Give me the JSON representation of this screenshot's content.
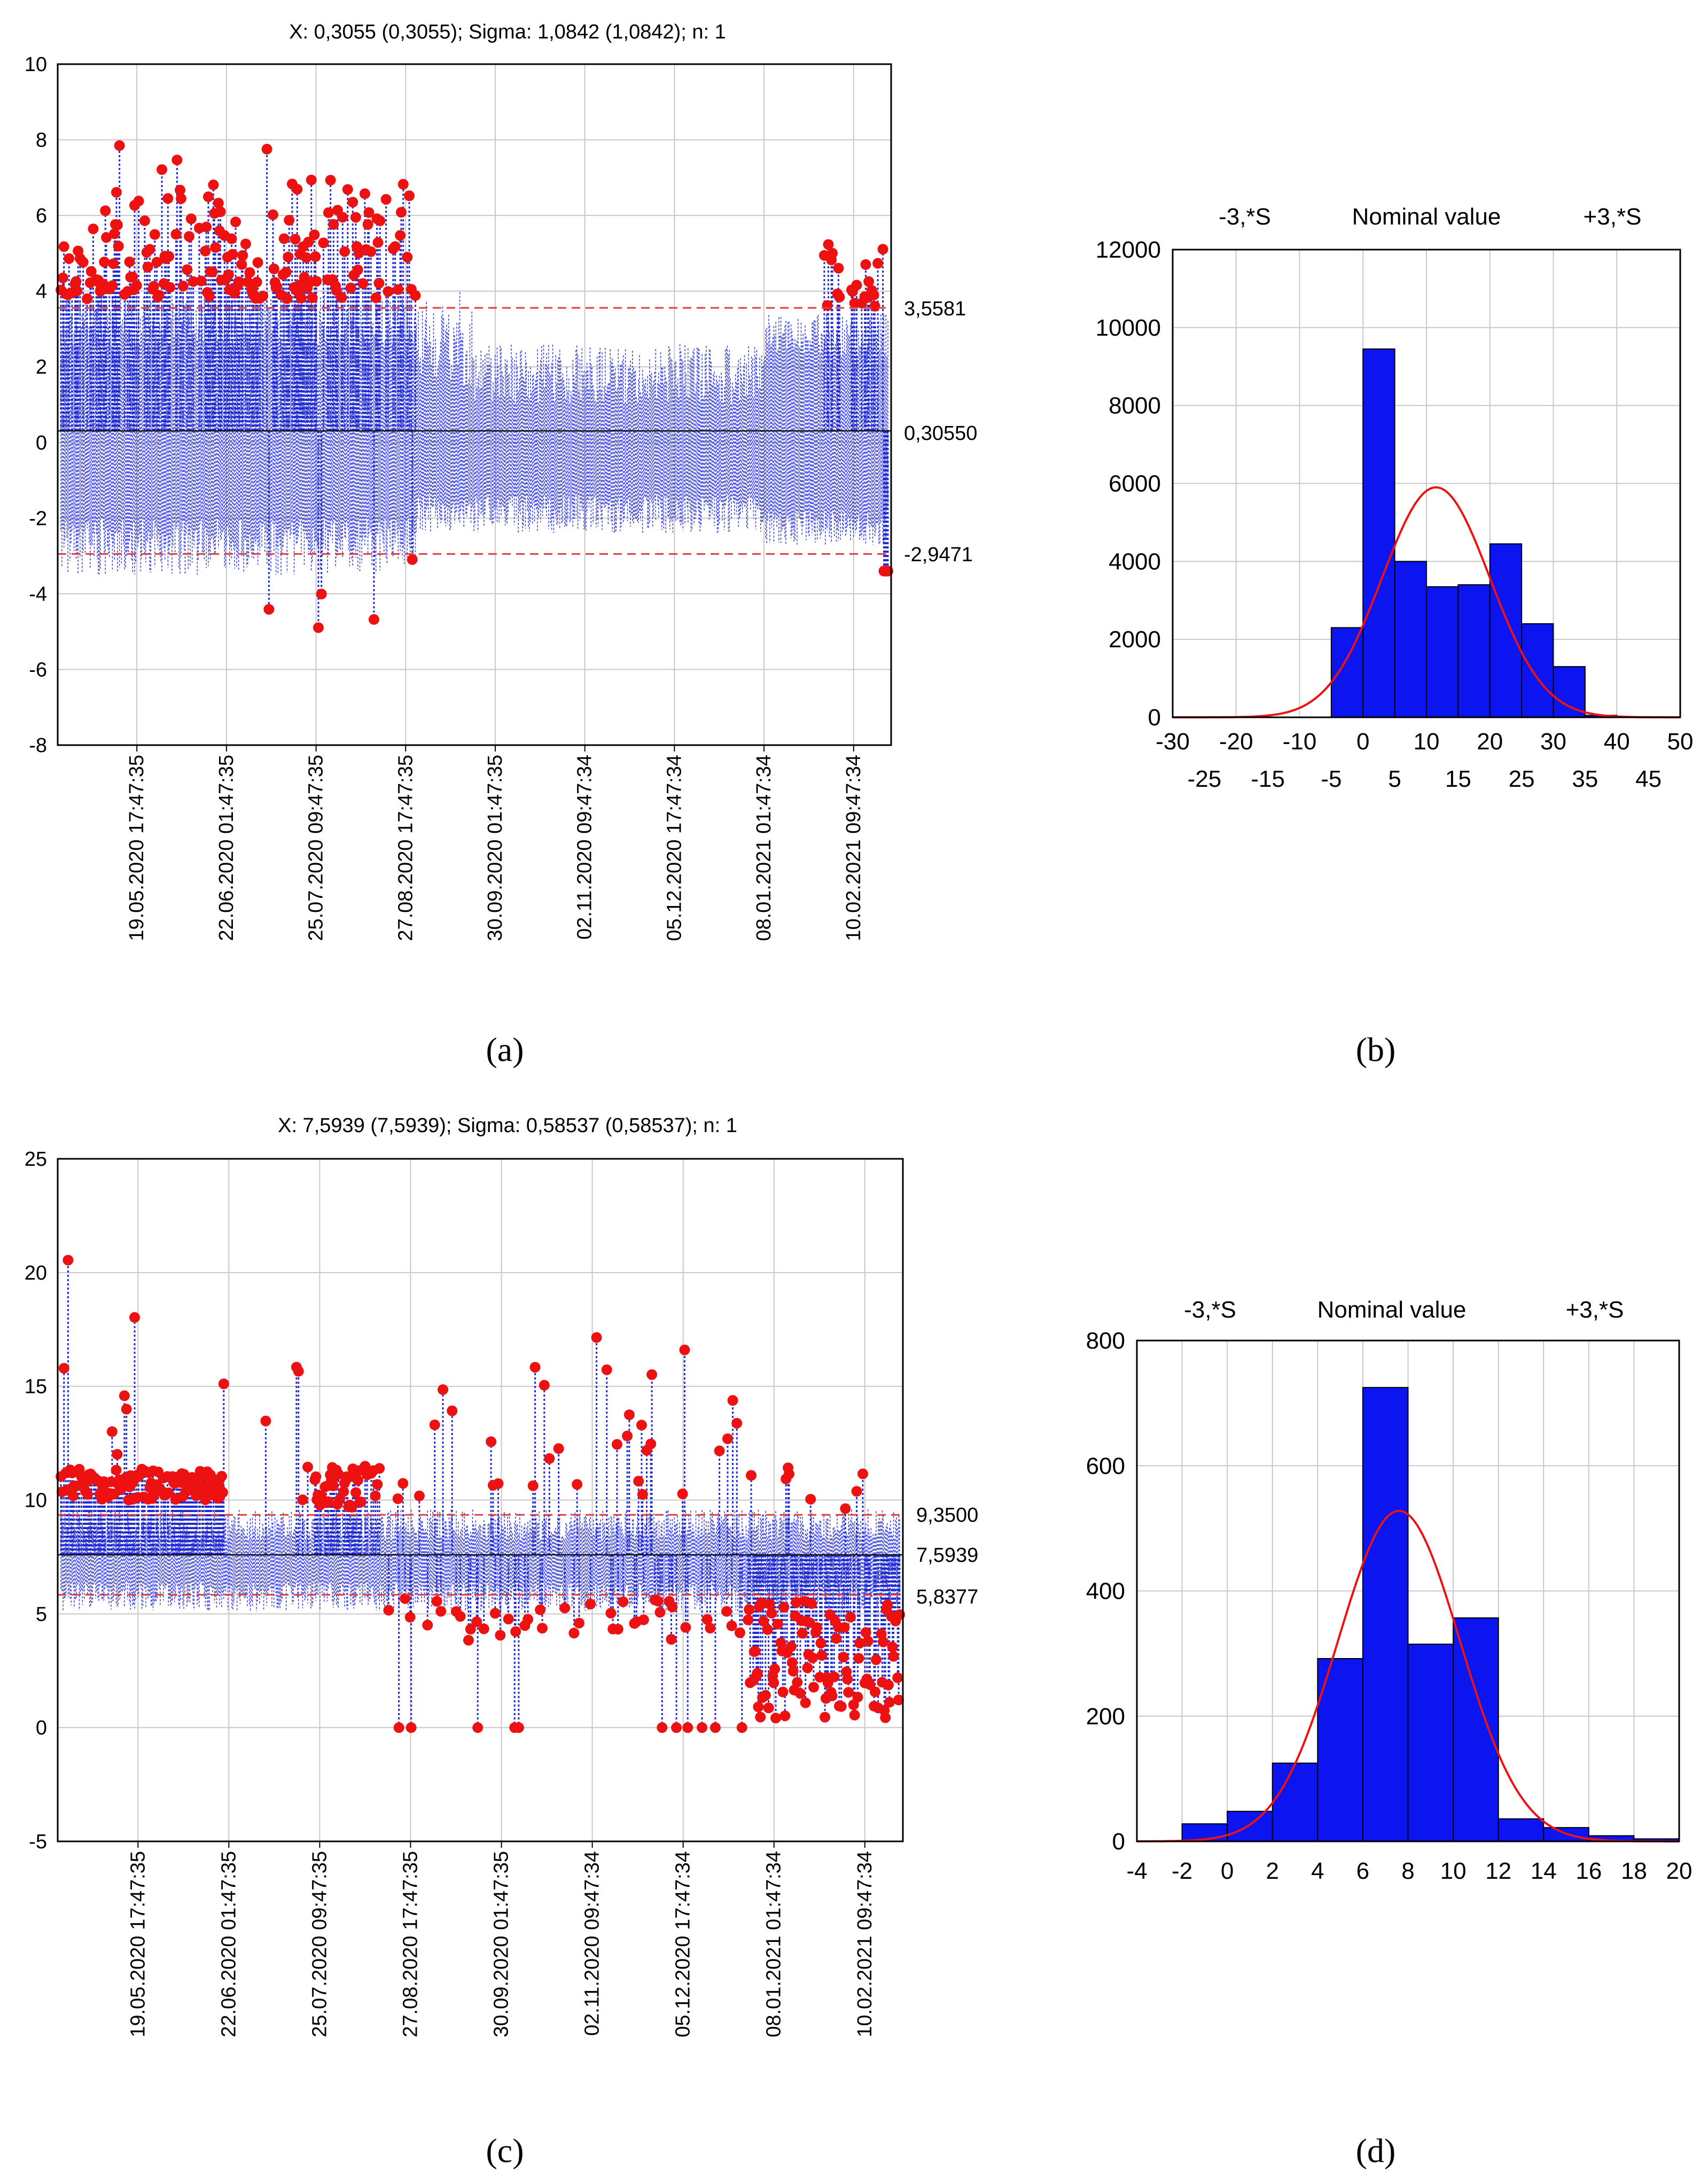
{
  "chart_data": [
    {
      "id": "a",
      "type": "control_chart",
      "panel_label": "(a)",
      "title": "X: 0,3055 (0,3055); Sigma: 1,0842 (1,0842); n: 1",
      "ylim": [
        -8,
        10
      ],
      "y_ticks": [
        -8,
        -6,
        -4,
        -2,
        0,
        2,
        4,
        6,
        8,
        10
      ],
      "x_ticks": [
        "19.05.2020 17:47:35",
        "22.06.2020 01:47:35",
        "25.07.2020 09:47:35",
        "27.08.2020 17:47:35",
        "30.09.2020 01:47:35",
        "02.11.2020 09:47:34",
        "05.12.2020 17:47:34",
        "08.01.2021 01:47:34",
        "10.02.2021 09:47:34"
      ],
      "ucl": 3.5581,
      "center": 0.3055,
      "lcl": -2.9471,
      "ucl_label": "3,5581",
      "center_label": "0,30550",
      "lcl_label": "-2,9471",
      "seed": 11
    },
    {
      "id": "b",
      "type": "histogram",
      "panel_label": "(b)",
      "top_labels": [
        "-3,*S",
        "Nominal value",
        "+3,*S"
      ],
      "xlim": [
        -30,
        50
      ],
      "ylim": [
        0,
        12000
      ],
      "y_ticks": [
        0,
        2000,
        4000,
        6000,
        8000,
        10000,
        12000
      ],
      "x_ticks_upper": [
        -30,
        -20,
        -10,
        0,
        10,
        20,
        30,
        40,
        50
      ],
      "x_ticks_lower": [
        -25,
        -15,
        -5,
        5,
        15,
        25,
        35,
        45
      ],
      "bins": [
        {
          "x0": -5,
          "x1": 0,
          "count": 2300
        },
        {
          "x0": 0,
          "x1": 5,
          "count": 9450
        },
        {
          "x0": 5,
          "x1": 10,
          "count": 4000
        },
        {
          "x0": 10,
          "x1": 15,
          "count": 3350
        },
        {
          "x0": 15,
          "x1": 20,
          "count": 3400
        },
        {
          "x0": 20,
          "x1": 25,
          "count": 4450
        },
        {
          "x0": 25,
          "x1": 30,
          "count": 2400
        },
        {
          "x0": 30,
          "x1": 35,
          "count": 1300
        },
        {
          "x0": 35,
          "x1": 40,
          "count": 50
        }
      ],
      "normal_curve": {
        "mean": 11.5,
        "sd": 8.5,
        "peak": 5900
      }
    },
    {
      "id": "c",
      "type": "control_chart",
      "panel_label": "(c)",
      "title": "X: 7,5939 (7,5939); Sigma: 0,58537 (0,58537); n: 1",
      "ylim": [
        -5,
        25
      ],
      "y_ticks": [
        -5,
        0,
        5,
        10,
        15,
        20,
        25
      ],
      "x_ticks": [
        "19.05.2020 17:47:35",
        "22.06.2020 01:47:35",
        "25.07.2020 09:47:35",
        "27.08.2020 17:47:35",
        "30.09.2020 01:47:35",
        "02.11.2020 09:47:34",
        "05.12.2020 17:47:34",
        "08.01.2021 01:47:34",
        "10.02.2021 09:47:34"
      ],
      "ucl": 9.35,
      "center": 7.5939,
      "lcl": 5.8377,
      "ucl_label": "9,3500",
      "center_label": "7,5939",
      "lcl_label": "5,8377",
      "seed": 29
    },
    {
      "id": "d",
      "type": "histogram",
      "panel_label": "(d)",
      "top_labels": [
        "-3,*S",
        "Nominal value",
        "+3,*S"
      ],
      "xlim": [
        -4,
        20
      ],
      "ylim": [
        0,
        800
      ],
      "y_ticks": [
        0,
        200,
        400,
        600,
        800
      ],
      "x_ticks": [
        -4,
        -2,
        0,
        2,
        4,
        6,
        8,
        10,
        12,
        14,
        16,
        18,
        20
      ],
      "bins": [
        {
          "x0": -2,
          "x1": 0,
          "count": 28
        },
        {
          "x0": 0,
          "x1": 2,
          "count": 48
        },
        {
          "x0": 2,
          "x1": 4,
          "count": 125
        },
        {
          "x0": 4,
          "x1": 6,
          "count": 292
        },
        {
          "x0": 6,
          "x1": 8,
          "count": 725
        },
        {
          "x0": 8,
          "x1": 10,
          "count": 315
        },
        {
          "x0": 10,
          "x1": 12,
          "count": 357
        },
        {
          "x0": 12,
          "x1": 14,
          "count": 36
        },
        {
          "x0": 14,
          "x1": 16,
          "count": 22
        },
        {
          "x0": 16,
          "x1": 18,
          "count": 9
        },
        {
          "x0": 18,
          "x1": 20,
          "count": 4
        }
      ],
      "normal_curve": {
        "mean": 7.6,
        "sd": 2.7,
        "peak": 528
      }
    }
  ]
}
